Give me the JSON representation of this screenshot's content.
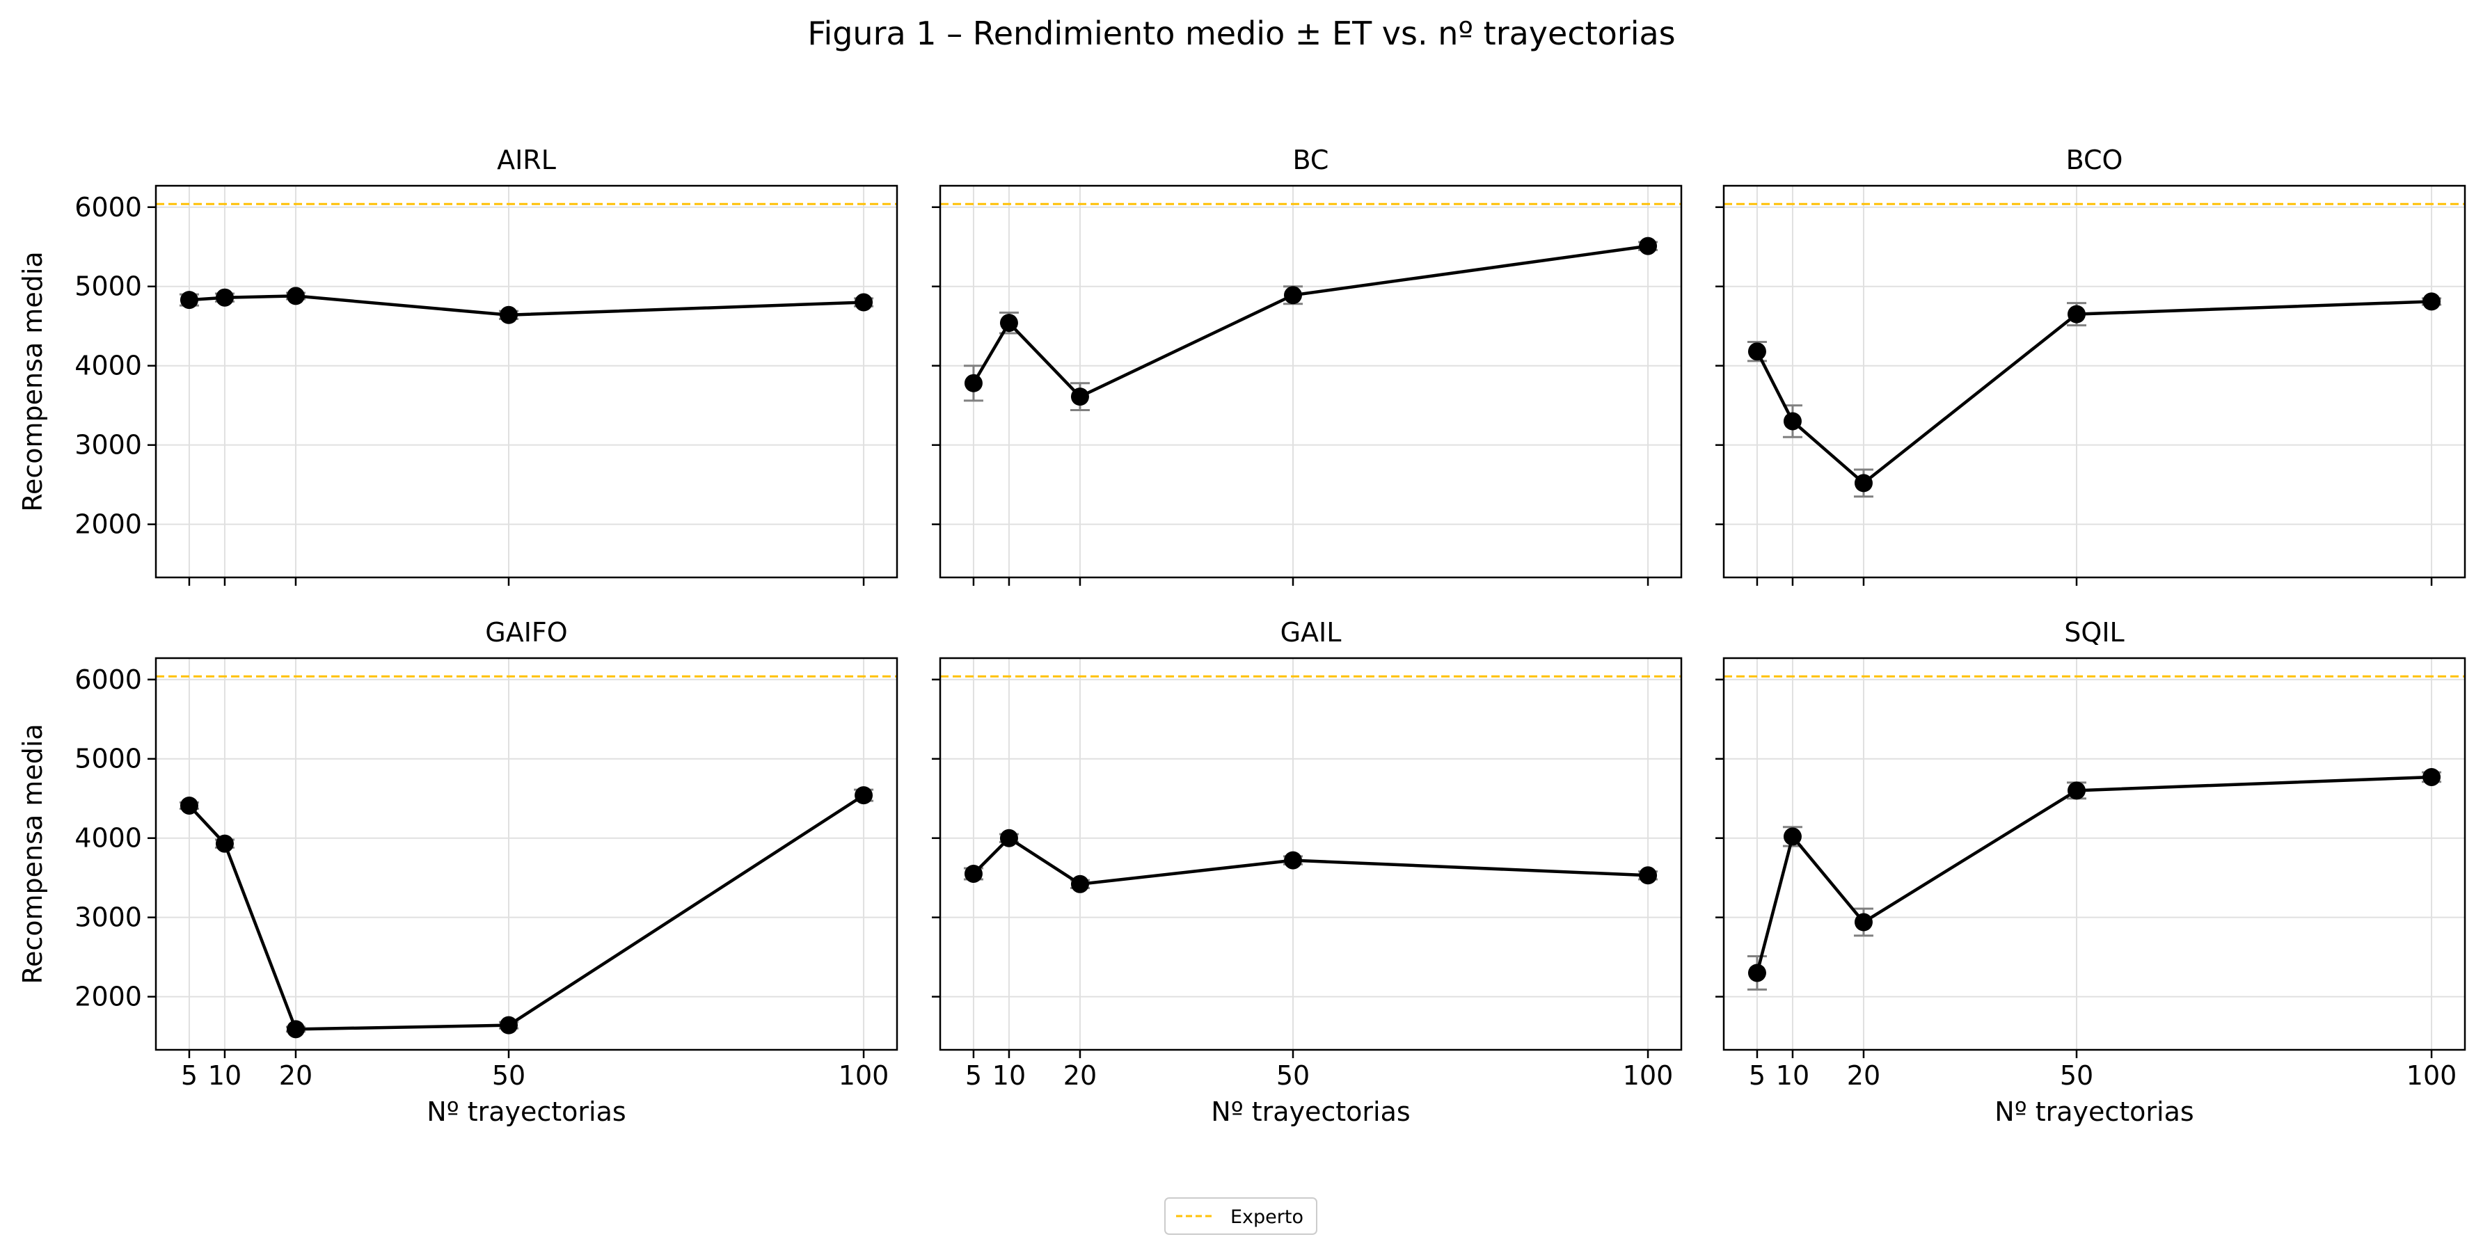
{
  "figure": {
    "title": "Figura 1 – Rendimiento medio ± ET vs. nº trayectorias",
    "legend": {
      "label": "Experto",
      "color": "#FFC107",
      "placement": "bottom-center"
    }
  },
  "chart_data": [
    {
      "type": "line",
      "title": "AIRL",
      "x": [
        5,
        10,
        20,
        50,
        100
      ],
      "y": [
        4830,
        4860,
        4880,
        4640,
        4800
      ],
      "err": [
        70,
        50,
        40,
        50,
        50
      ],
      "xlabel": "",
      "ylabel": "Recompensa media",
      "expert": 6040,
      "ylim": [
        1330,
        6270
      ],
      "xlim": [
        0.3,
        104.7
      ],
      "xticks": [
        5,
        10,
        20,
        50,
        100
      ],
      "yticks": [
        2000,
        3000,
        4000,
        5000,
        6000
      ],
      "grid": true
    },
    {
      "type": "line",
      "title": "BC",
      "x": [
        5,
        10,
        20,
        50,
        100
      ],
      "y": [
        3780,
        4540,
        3610,
        4890,
        5510
      ],
      "err": [
        220,
        130,
        170,
        110,
        50
      ],
      "xlabel": "",
      "ylabel": "",
      "expert": 6040,
      "ylim": [
        1330,
        6270
      ],
      "xlim": [
        0.3,
        104.7
      ],
      "xticks": [
        5,
        10,
        20,
        50,
        100
      ],
      "yticks": [
        2000,
        3000,
        4000,
        5000,
        6000
      ],
      "grid": true
    },
    {
      "type": "line",
      "title": "BCO",
      "x": [
        5,
        10,
        20,
        50,
        100
      ],
      "y": [
        4180,
        3300,
        2520,
        4650,
        4810
      ],
      "err": [
        120,
        200,
        170,
        140,
        40
      ],
      "xlabel": "",
      "ylabel": "",
      "expert": 6040,
      "ylim": [
        1330,
        6270
      ],
      "xlim": [
        0.3,
        104.7
      ],
      "xticks": [
        5,
        10,
        20,
        50,
        100
      ],
      "yticks": [
        2000,
        3000,
        4000,
        5000,
        6000
      ],
      "grid": true
    },
    {
      "type": "line",
      "title": "GAIFO",
      "x": [
        5,
        10,
        20,
        50,
        100
      ],
      "y": [
        4410,
        3930,
        1590,
        1640,
        4540
      ],
      "err": [
        40,
        50,
        30,
        40,
        70
      ],
      "xlabel": "Nº trayectorias",
      "ylabel": "Recompensa media",
      "expert": 6040,
      "ylim": [
        1330,
        6270
      ],
      "xlim": [
        0.3,
        104.7
      ],
      "xticks": [
        5,
        10,
        20,
        50,
        100
      ],
      "yticks": [
        2000,
        3000,
        4000,
        5000,
        6000
      ],
      "grid": true
    },
    {
      "type": "line",
      "title": "GAIL",
      "x": [
        5,
        10,
        20,
        50,
        100
      ],
      "y": [
        3550,
        4000,
        3420,
        3720,
        3530
      ],
      "err": [
        70,
        50,
        50,
        50,
        50
      ],
      "xlabel": "Nº trayectorias",
      "ylabel": "",
      "expert": 6040,
      "ylim": [
        1330,
        6270
      ],
      "xlim": [
        0.3,
        104.7
      ],
      "xticks": [
        5,
        10,
        20,
        50,
        100
      ],
      "yticks": [
        2000,
        3000,
        4000,
        5000,
        6000
      ],
      "grid": true
    },
    {
      "type": "line",
      "title": "SQIL",
      "x": [
        5,
        10,
        20,
        50,
        100
      ],
      "y": [
        2300,
        4020,
        2940,
        4600,
        4770
      ],
      "err": [
        210,
        120,
        170,
        100,
        60
      ],
      "xlabel": "Nº trayectorias",
      "ylabel": "",
      "expert": 6040,
      "ylim": [
        1330,
        6270
      ],
      "xlim": [
        0.3,
        104.7
      ],
      "xticks": [
        5,
        10,
        20,
        50,
        100
      ],
      "yticks": [
        2000,
        3000,
        4000,
        5000,
        6000
      ],
      "grid": true
    }
  ],
  "colors": {
    "line": "#000000",
    "marker": "#000000",
    "errorbar": "#808080",
    "grid": "#e0e0e0",
    "expert": "#FFC107"
  }
}
